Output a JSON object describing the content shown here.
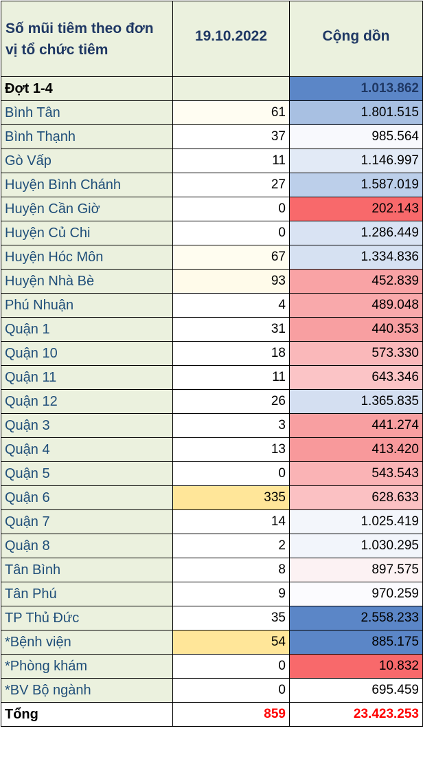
{
  "header": {
    "col1": "Số mũi tiêm theo đơn vị tổ chức tiêm",
    "col2": "19.10.2022",
    "col3": "Cộng dồn"
  },
  "rows": [
    {
      "name": "Đợt 1-4",
      "day": "",
      "cum": "1.013.862",
      "day_bg": "#ebf1de",
      "cum_bg": "#5b86c7",
      "bold": true
    },
    {
      "name": "Bình Tân",
      "day": "61",
      "cum": "1.801.515",
      "day_bg": "#fffdf2",
      "cum_bg": "#a8c0e2"
    },
    {
      "name": "Bình Thạnh",
      "day": "37",
      "cum": "985.564",
      "day_bg": "#ffffff",
      "cum_bg": "#f8f9fd"
    },
    {
      "name": "Gò Vấp",
      "day": "11",
      "cum": "1.146.997",
      "day_bg": "#ffffff",
      "cum_bg": "#e2eaf6"
    },
    {
      "name": "Huyện Bình Chánh",
      "day": "27",
      "cum": "1.587.019",
      "day_bg": "#ffffff",
      "cum_bg": "#bccfea"
    },
    {
      "name": "Huyện Cần Giờ",
      "day": "0",
      "cum": "202.143",
      "day_bg": "#ffffff",
      "cum_bg": "#f8696b"
    },
    {
      "name": "Huyện Củ Chi",
      "day": "0",
      "cum": "1.286.449",
      "day_bg": "#ffffff",
      "cum_bg": "#d9e3f3"
    },
    {
      "name": "Huyện Hóc Môn",
      "day": "67",
      "cum": "1.334.836",
      "day_bg": "#fffdf0",
      "cum_bg": "#d6e1f2"
    },
    {
      "name": "Huyện Nhà Bè",
      "day": "93",
      "cum": "452.839",
      "day_bg": "#fffbea",
      "cum_bg": "#f9a3a5"
    },
    {
      "name": "Phú Nhuận",
      "day": "4",
      "cum": "489.048",
      "day_bg": "#ffffff",
      "cum_bg": "#f9a9ab"
    },
    {
      "name": "Quận 1",
      "day": "31",
      "cum": "440.353",
      "day_bg": "#ffffff",
      "cum_bg": "#f89fa1"
    },
    {
      "name": "Quận 10",
      "day": "18",
      "cum": "573.330",
      "day_bg": "#ffffff",
      "cum_bg": "#fab8ba"
    },
    {
      "name": "Quận 11",
      "day": "11",
      "cum": "643.346",
      "day_bg": "#ffffff",
      "cum_bg": "#fbc4c6"
    },
    {
      "name": "Quận 12",
      "day": "26",
      "cum": "1.365.835",
      "day_bg": "#ffffff",
      "cum_bg": "#d4dff1"
    },
    {
      "name": "Quận 3",
      "day": "3",
      "cum": "441.274",
      "day_bg": "#ffffff",
      "cum_bg": "#f89fa1"
    },
    {
      "name": "Quận 4",
      "day": "13",
      "cum": "413.420",
      "day_bg": "#ffffff",
      "cum_bg": "#f8999b"
    },
    {
      "name": "Quận 5",
      "day": "0",
      "cum": "543.543",
      "day_bg": "#ffffff",
      "cum_bg": "#fab3b5"
    },
    {
      "name": "Quận 6",
      "day": "335",
      "cum": "628.633",
      "day_bg": "#ffe699",
      "cum_bg": "#fbc1c3"
    },
    {
      "name": "Quận 7",
      "day": "14",
      "cum": "1.025.419",
      "day_bg": "#ffffff",
      "cum_bg": "#f3f6fb"
    },
    {
      "name": "Quận 8",
      "day": "2",
      "cum": "1.030.295",
      "day_bg": "#ffffff",
      "cum_bg": "#f2f5fb"
    },
    {
      "name": "Tân Bình",
      "day": "8",
      "cum": "897.575",
      "day_bg": "#ffffff",
      "cum_bg": "#fcf2f3"
    },
    {
      "name": "Tân Phú",
      "day": "9",
      "cum": "970.259",
      "day_bg": "#ffffff",
      "cum_bg": "#fbfbfe"
    },
    {
      "name": "TP Thủ Đức",
      "day": "35",
      "cum": "2.558.233",
      "day_bg": "#ffffff",
      "cum_bg": "#5b86c7"
    },
    {
      "name": "*Bệnh viện",
      "day": "54",
      "cum": "885.175",
      "day_bg": "#ffe699",
      "cum_bg": "#5b86c7"
    },
    {
      "name": "*Phòng khám",
      "day": "0",
      "cum": "10.832",
      "day_bg": "#ffffff",
      "cum_bg": "#f8696b"
    },
    {
      "name": "*BV Bộ ngành",
      "day": "0",
      "cum": "695.459",
      "day_bg": "#ffffff",
      "cum_bg": "#ffffff"
    }
  ],
  "total": {
    "name": "Tổng",
    "day": "859",
    "cum": "23.423.253"
  }
}
